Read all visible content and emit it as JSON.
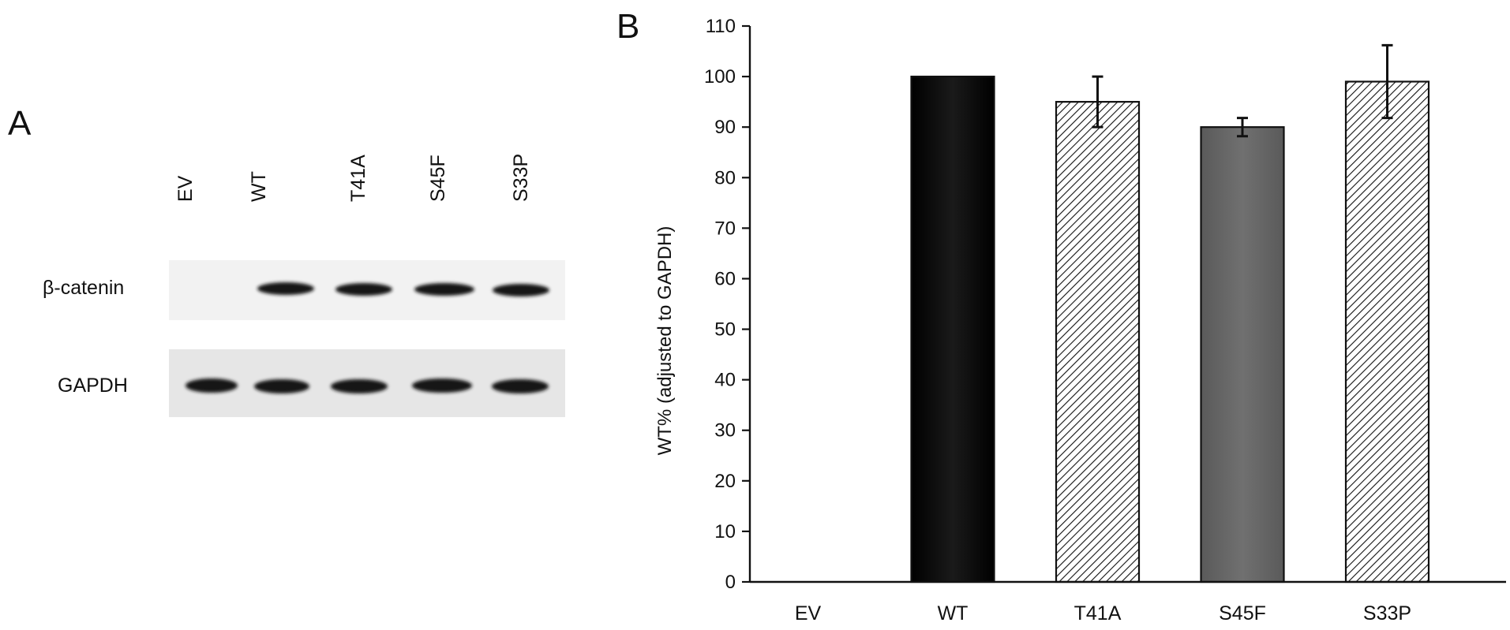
{
  "panel_a": {
    "letter": "A",
    "lanes": [
      "EV",
      "WT",
      "T41A",
      "S45F",
      "S33P"
    ],
    "rows": [
      {
        "label": "β-catenin",
        "bands": [
          0,
          1,
          1,
          1,
          1
        ]
      },
      {
        "label": "GAPDH",
        "bands": [
          1,
          1,
          1,
          1,
          1
        ]
      }
    ]
  },
  "panel_b": {
    "letter": "B"
  },
  "chart_data": {
    "type": "bar",
    "categories": [
      "EV",
      "WT",
      "T41A",
      "S45F",
      "S33P"
    ],
    "values": [
      0,
      100,
      95,
      90,
      99
    ],
    "errors": [
      0,
      0,
      5,
      1.8,
      7.2
    ],
    "fills": [
      "none",
      "solid-black",
      "hatched",
      "solid-gray",
      "hatched"
    ],
    "colors": {
      "WT": "#0a0a0a",
      "S45F": "#6b6b6b",
      "hatch": "#ffffff"
    },
    "title": "",
    "xlabel": "",
    "ylabel": "WT% (adjusted to GAPDH)",
    "ylim": [
      0,
      110
    ],
    "yticks": [
      0,
      10,
      20,
      30,
      40,
      50,
      60,
      70,
      80,
      90,
      100,
      110
    ],
    "grid": false,
    "legend": "none"
  }
}
